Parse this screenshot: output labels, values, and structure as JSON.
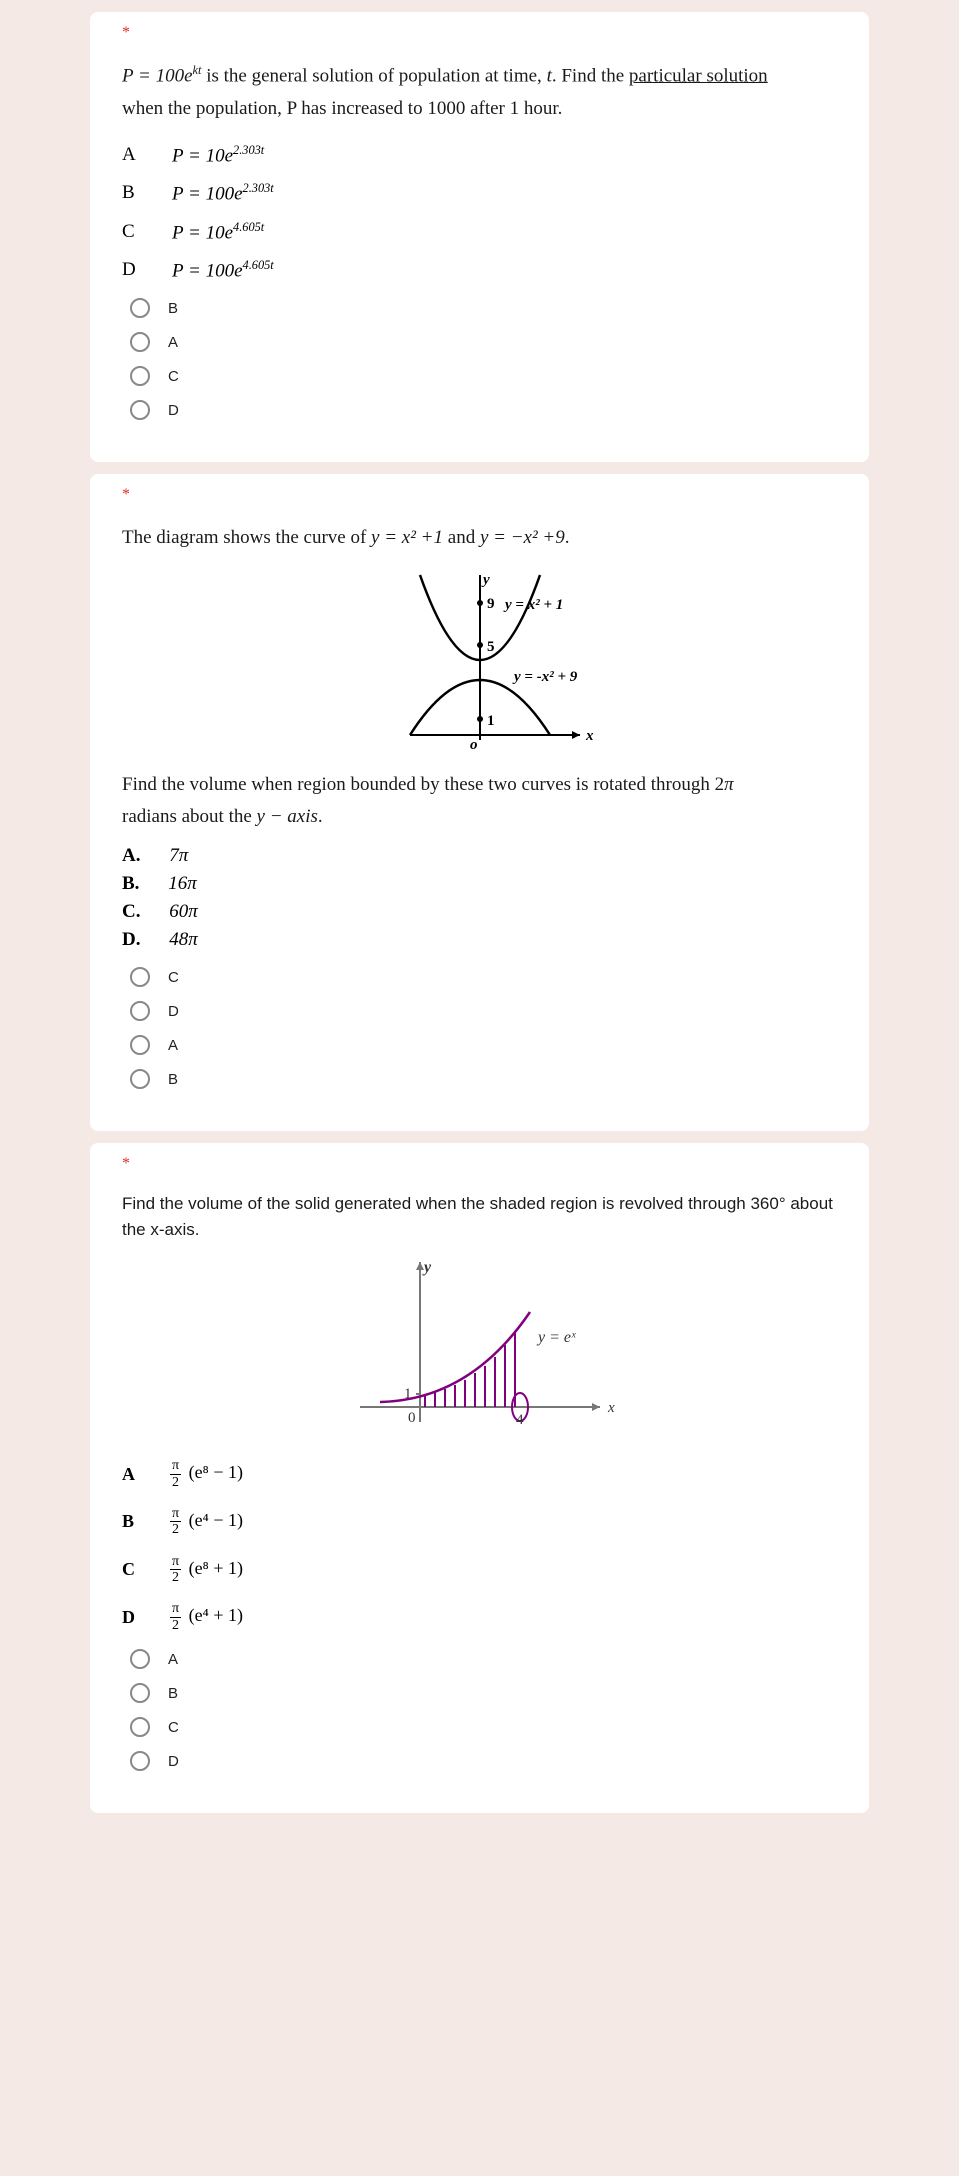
{
  "q1": {
    "required": "*",
    "prompt_pre": "P = 100e",
    "prompt_sup": "kt",
    "prompt_mid": " is the general solution of population at time, ",
    "prompt_t": "t",
    "prompt_post": ". Find the ",
    "prompt_ul": "particular solution",
    "prompt_line2": "when the population, P has increased to 1000 after 1 hour.",
    "options": [
      {
        "letter": "A",
        "base": "P = 10e",
        "exp": "2.303t"
      },
      {
        "letter": "B",
        "base": "P = 100e",
        "exp": "2.303t"
      },
      {
        "letter": "C",
        "base": "P = 10e",
        "exp": "4.605t"
      },
      {
        "letter": "D",
        "base": "P = 100e",
        "exp": "4.605t"
      }
    ],
    "radios": [
      "B",
      "A",
      "C",
      "D"
    ]
  },
  "q2": {
    "required": "*",
    "prompt_pre": "The diagram shows the curve of  ",
    "eq1": "y = x² +1",
    "and": " and ",
    "eq2": "y = −x² +9",
    "dot": ".",
    "diagram": {
      "label_y": "y",
      "label_x": "x",
      "label_o": "o",
      "pt9": "9",
      "pt5": "5",
      "pt1": "1",
      "curve1_label": "y = x² + 1",
      "curve2_label": "y = -x² + 9"
    },
    "line2_pre": "Find the volume when region bounded by these two curves is rotated through 2",
    "line2_pi": "π",
    "line3_pre": "radians about the  ",
    "line3_axis": "y − axis",
    "line3_post": ".",
    "options": [
      {
        "letter": "A.",
        "val": "7π"
      },
      {
        "letter": "B.",
        "val": "16π"
      },
      {
        "letter": "C.",
        "val": "60π"
      },
      {
        "letter": "D.",
        "val": "48π"
      }
    ],
    "radios": [
      "C",
      "D",
      "A",
      "B"
    ]
  },
  "q3": {
    "required": "*",
    "prompt": "Find the volume of the solid generated when the shaded region is revolved through 360° about the x-axis.",
    "diagram": {
      "label_y": "y",
      "label_x": "x",
      "label_0": "0",
      "label_1": "1",
      "label_4": "4",
      "curve": "y = eˣ"
    },
    "options": [
      {
        "letter": "A",
        "expr_num": "π",
        "expr_den": "2",
        "expr_rest": "(e⁸ − 1)"
      },
      {
        "letter": "B",
        "expr_num": "π",
        "expr_den": "2",
        "expr_rest": "(e⁴ − 1)"
      },
      {
        "letter": "C",
        "expr_num": "π",
        "expr_den": "2",
        "expr_rest": "(e⁸ + 1)"
      },
      {
        "letter": "D",
        "expr_num": "π",
        "expr_den": "2",
        "expr_rest": "(e⁴ + 1)"
      }
    ],
    "radios": [
      "A",
      "B",
      "C",
      "D"
    ]
  }
}
